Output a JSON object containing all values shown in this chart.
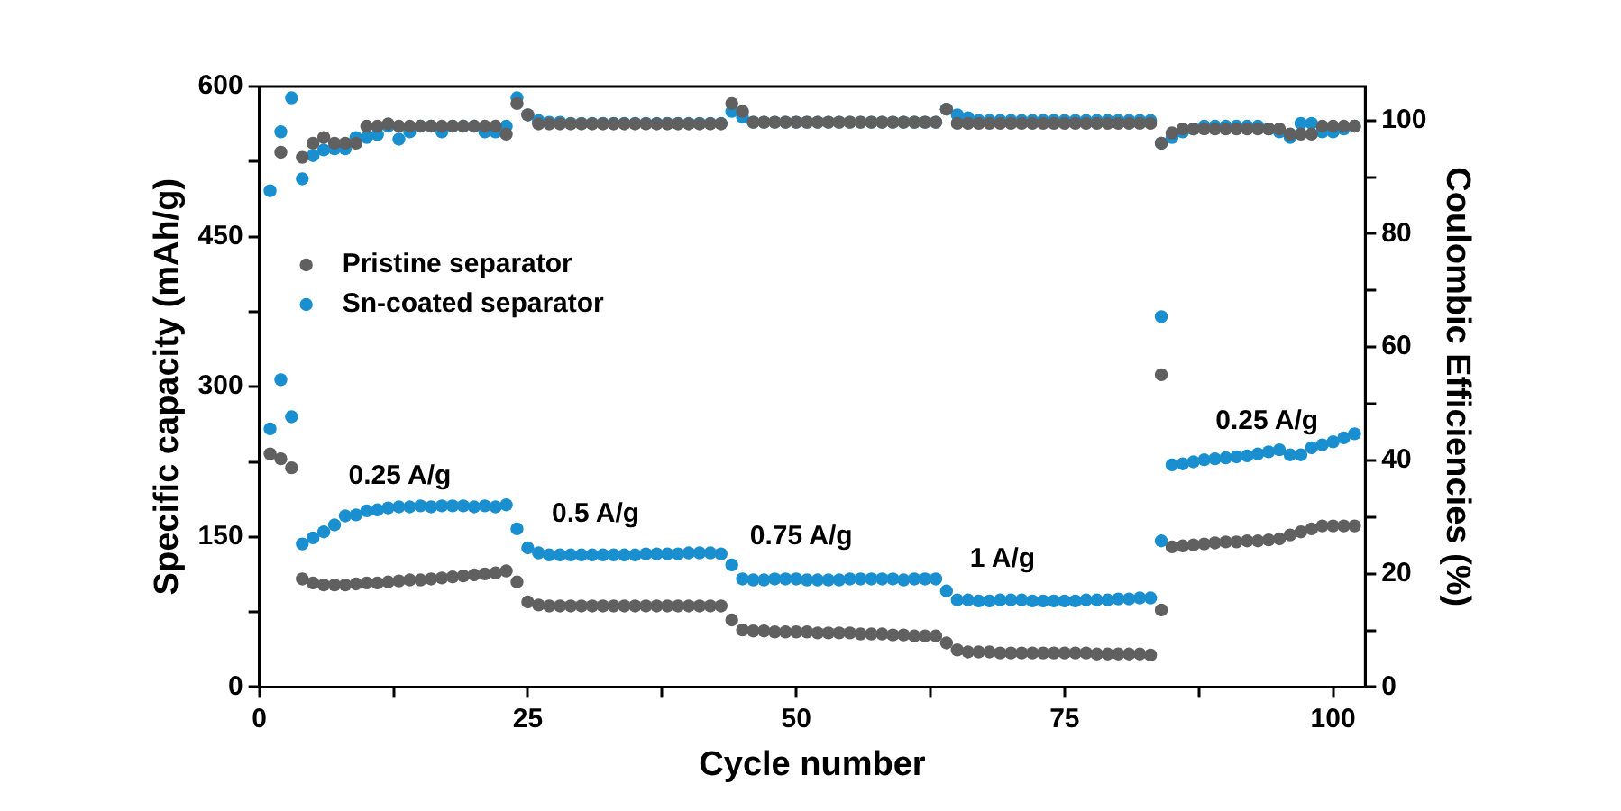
{
  "chart_data": {
    "type": "scatter",
    "xlabel": "Cycle number",
    "ylabel": "Specific capacity (mAh/g)",
    "y2label": "Coulombic Efficiencies (%)",
    "x": [
      1,
      2,
      3,
      4,
      5,
      6,
      7,
      8,
      9,
      10,
      11,
      12,
      13,
      14,
      15,
      16,
      17,
      18,
      19,
      20,
      21,
      22,
      23,
      24,
      25,
      26,
      27,
      28,
      29,
      30,
      31,
      32,
      33,
      34,
      35,
      36,
      37,
      38,
      39,
      40,
      41,
      42,
      43,
      44,
      45,
      46,
      47,
      48,
      49,
      50,
      51,
      52,
      53,
      54,
      55,
      56,
      57,
      58,
      59,
      60,
      61,
      62,
      63,
      64,
      65,
      66,
      67,
      68,
      69,
      70,
      71,
      72,
      73,
      74,
      75,
      76,
      77,
      78,
      79,
      80,
      81,
      82,
      83,
      84,
      85,
      86,
      87,
      88,
      89,
      90,
      91,
      92,
      93,
      94,
      95,
      96,
      97,
      98,
      99,
      100,
      101,
      102
    ],
    "xlim": [
      0,
      103
    ],
    "xticks": [
      0,
      {
        "value": 12.5,
        "label": null
      },
      25,
      {
        "value": 37.5,
        "label": null
      },
      50,
      {
        "value": 62.5,
        "label": null
      },
      75,
      {
        "value": 87.5,
        "label": null
      },
      100
    ],
    "ylim": [
      0,
      600
    ],
    "yticks": [
      0,
      {
        "value": 75,
        "label": null
      },
      150,
      {
        "value": 225,
        "label": null
      },
      300,
      {
        "value": 375,
        "label": null
      },
      450,
      {
        "value": 525,
        "label": null
      },
      600
    ],
    "y2lim": [
      0,
      106
    ],
    "y2ticks": [
      0,
      {
        "value": 10,
        "label": null
      },
      20,
      {
        "value": 30,
        "label": null
      },
      40,
      {
        "value": 50,
        "label": null
      },
      60,
      {
        "value": 70,
        "label": null
      },
      80,
      {
        "value": 90,
        "label": null
      },
      100
    ],
    "marker": "circle",
    "legend": "top left",
    "grid": false,
    "series": [
      {
        "name": "Pristine separator",
        "color": "#606060",
        "values": [
          233,
          228,
          219,
          108,
          104,
          102,
          102,
          102,
          103,
          104,
          104,
          105,
          106,
          107,
          107,
          108,
          109,
          110,
          111,
          112,
          113,
          114,
          116,
          105,
          85,
          82,
          81,
          81,
          81,
          81,
          81,
          81,
          81,
          81,
          81,
          81,
          81,
          81,
          81,
          81,
          81,
          81,
          81,
          67,
          57,
          56,
          56,
          55,
          55,
          55,
          55,
          54,
          54,
          54,
          54,
          53,
          53,
          53,
          52,
          52,
          51,
          51,
          51,
          44,
          37,
          35,
          35,
          35,
          34,
          34,
          34,
          34,
          34,
          34,
          34,
          34,
          34,
          33,
          33,
          33,
          33,
          33,
          32,
          77,
          140,
          141,
          142,
          143,
          144,
          145,
          145,
          146,
          146,
          147,
          148,
          152,
          155,
          158,
          161,
          161,
          161,
          161
        ]
      },
      {
        "name": "Sn-coated separator",
        "color": "#1a8fd0",
        "values": [
          258,
          307,
          270,
          143,
          149,
          155,
          162,
          171,
          172,
          176,
          177,
          179,
          180,
          180,
          181,
          180,
          181,
          181,
          181,
          180,
          181,
          180,
          182,
          158,
          139,
          134,
          132,
          132,
          132,
          132,
          132,
          132,
          132,
          132,
          132,
          133,
          133,
          133,
          133,
          134,
          134,
          134,
          133,
          122,
          108,
          107,
          107,
          108,
          108,
          108,
          107,
          107,
          107,
          107,
          108,
          108,
          108,
          108,
          108,
          107,
          108,
          108,
          108,
          96,
          87,
          87,
          86,
          86,
          87,
          87,
          87,
          86,
          86,
          86,
          86,
          86,
          87,
          87,
          87,
          88,
          88,
          89,
          89,
          146,
          222,
          223,
          225,
          227,
          228,
          229,
          230,
          231,
          233,
          235,
          237,
          232,
          232,
          239,
          242,
          245,
          249,
          253
        ]
      },
      {
        "color": "#606060",
        "x": [
          84
        ],
        "values": [
          312
        ]
      },
      {
        "color": "#1a8fd0",
        "x": [
          84
        ],
        "values": [
          370
        ]
      },
      {
        "color": "#606060",
        "axis": "y2",
        "values": [
          null,
          94.4,
          null,
          93.5,
          96,
          97,
          96,
          96,
          96,
          99,
          99,
          99.4,
          99,
          99,
          99,
          99,
          99,
          99,
          99,
          99,
          99,
          99,
          97.6,
          103,
          101,
          99.4,
          99.4,
          99.4,
          99.4,
          99.4,
          99.4,
          99.4,
          99.4,
          99.4,
          99.4,
          99.4,
          99.4,
          99.4,
          99.4,
          99.4,
          99.4,
          99.4,
          99.4,
          103,
          101.6,
          99.7,
          99.7,
          99.7,
          99.7,
          99.7,
          99.7,
          99.7,
          99.7,
          99.7,
          99.7,
          99.7,
          99.7,
          99.7,
          99.7,
          99.7,
          99.7,
          99.7,
          99.7,
          102,
          99.5,
          99.5,
          99.5,
          99.5,
          99.5,
          99.5,
          99.5,
          99.5,
          99.5,
          99.5,
          99.5,
          99.5,
          99.5,
          99.5,
          99.5,
          99.5,
          99.5,
          99.5,
          99.5,
          96,
          97.8,
          98.5,
          98.5,
          98.5,
          98.5,
          98.5,
          98.5,
          98.5,
          98.5,
          98.5,
          98.5,
          97.6,
          97.6,
          97.6,
          99,
          99,
          99,
          99
        ]
      },
      {
        "color": "#1a8fd0",
        "axis": "y2",
        "values": [
          87.6,
          98,
          104,
          89.7,
          93.8,
          94.8,
          95,
          95,
          97,
          97,
          97.5,
          99,
          96.7,
          98,
          99,
          99,
          98,
          99,
          99,
          99,
          98,
          98,
          99,
          104,
          101,
          100,
          99.7,
          99.7,
          99.5,
          99.5,
          99.5,
          99.5,
          99.5,
          99.5,
          99.5,
          99.5,
          99.5,
          99.5,
          99.5,
          99.5,
          99.5,
          99.5,
          99.5,
          101.6,
          100.6,
          99.7,
          99.7,
          99.7,
          99.7,
          99.7,
          99.7,
          99.7,
          99.7,
          99.7,
          99.7,
          99.7,
          99.7,
          99.7,
          99.7,
          99.7,
          99.7,
          99.7,
          99.7,
          102,
          101,
          100.5,
          100,
          100,
          100,
          100,
          100,
          100,
          100,
          100,
          100,
          100,
          100,
          100,
          100,
          100,
          100,
          100,
          100,
          96,
          97,
          98,
          98.5,
          99,
          99,
          99,
          99,
          99,
          99,
          98.5,
          98,
          97,
          99.5,
          99.5,
          98,
          98,
          98.5,
          99
        ]
      }
    ],
    "annotations": [
      "0.25 A/g",
      "0.5 A/g",
      "0.75 A/g",
      "1 A/g",
      "0.25 A/g"
    ]
  }
}
